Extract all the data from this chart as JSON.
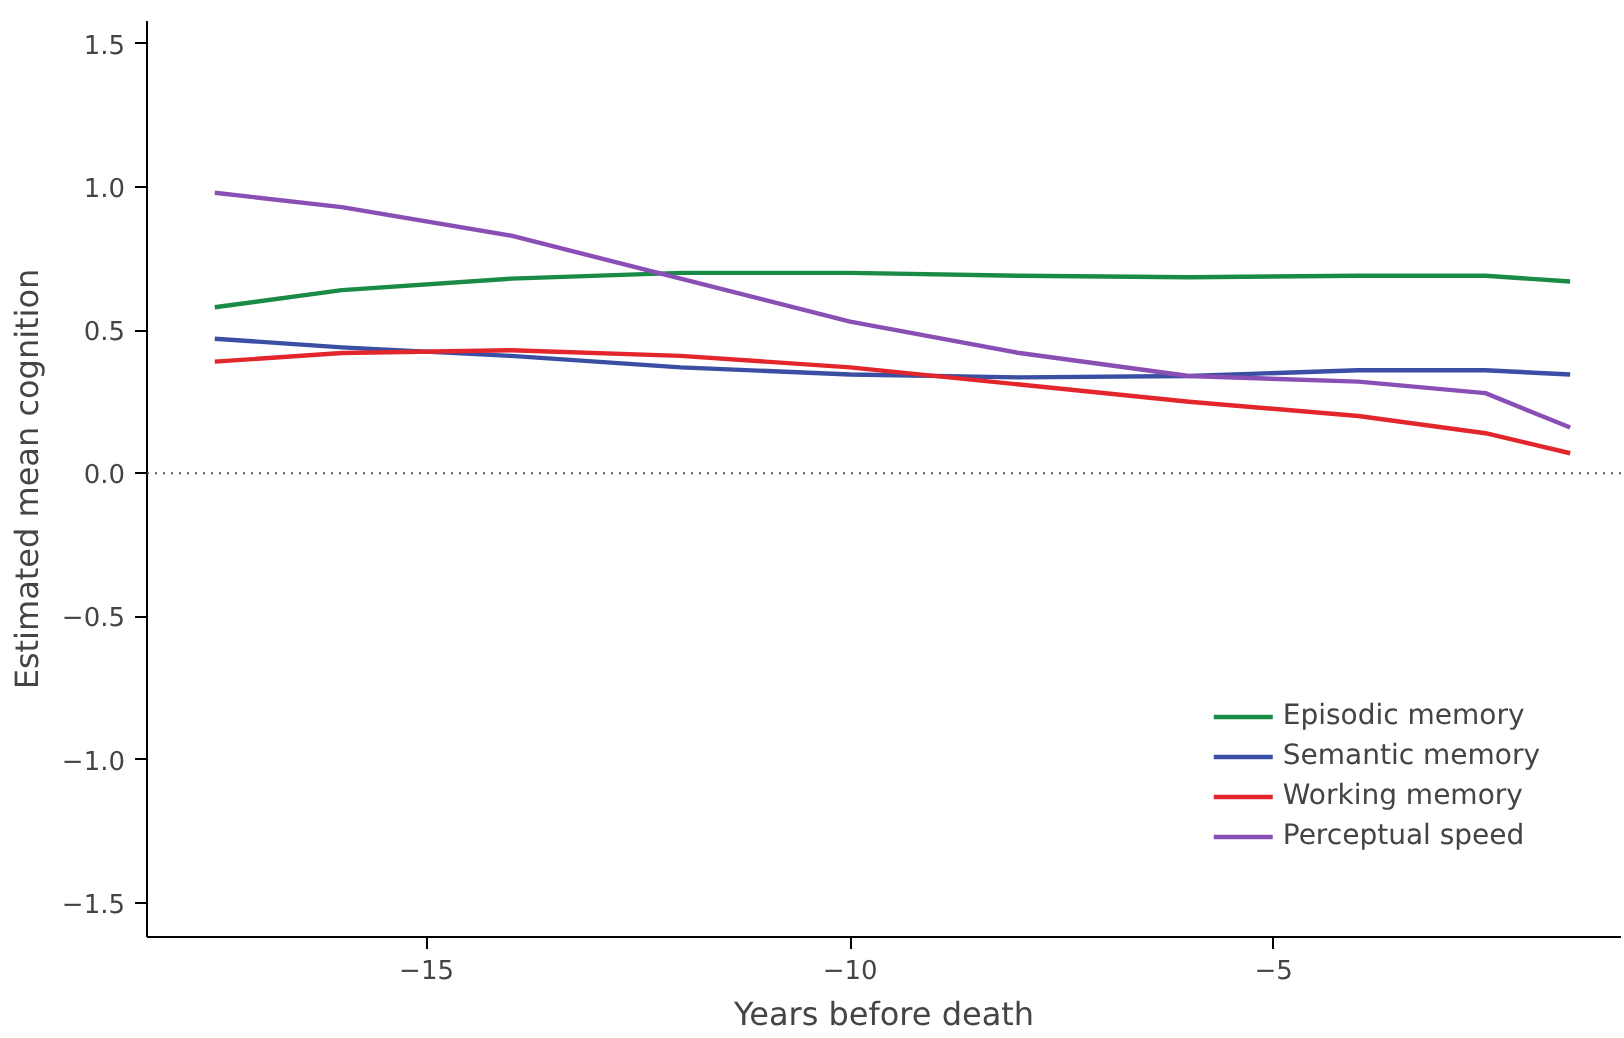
{
  "chart_data": {
    "type": "line",
    "xlabel": "Years before death",
    "ylabel": "Estimated mean cognition",
    "x": [
      -17.5,
      -16,
      -14,
      -12,
      -10,
      -8,
      -6,
      -4,
      -2.5,
      -1.5
    ],
    "series": [
      {
        "name": "Episodic memory",
        "color": "#1a8a47",
        "values": [
          0.58,
          0.64,
          0.68,
          0.7,
          0.7,
          0.69,
          0.685,
          0.69,
          0.69,
          0.67
        ]
      },
      {
        "name": "Semantic memory",
        "color": "#3a4fa3",
        "values": [
          0.47,
          0.44,
          0.41,
          0.37,
          0.345,
          0.335,
          0.34,
          0.36,
          0.36,
          0.345
        ]
      },
      {
        "name": "Working memory",
        "color": "#e3262b",
        "values": [
          0.39,
          0.42,
          0.43,
          0.41,
          0.37,
          0.31,
          0.25,
          0.2,
          0.14,
          0.07
        ]
      },
      {
        "name": "Perceptual speed",
        "color": "#8a4fb5",
        "values": [
          0.98,
          0.93,
          0.83,
          0.68,
          0.53,
          0.42,
          0.34,
          0.32,
          0.28,
          0.16
        ]
      }
    ],
    "xlim": [
      -18.3,
      -0.9
    ],
    "ylim": [
      -1.62,
      1.58
    ],
    "xticks": [
      {
        "value": -15,
        "label": "−15"
      },
      {
        "value": -10,
        "label": "−10"
      },
      {
        "value": -5,
        "label": "−5"
      }
    ],
    "yticks": [
      {
        "value": -1.5,
        "label": "−1.5"
      },
      {
        "value": -1.0,
        "label": "−1.0"
      },
      {
        "value": -0.5,
        "label": "−0.5"
      },
      {
        "value": 0,
        "label": "0.0"
      },
      {
        "value": 0.5,
        "label": "0.5"
      },
      {
        "value": 1.0,
        "label": "1.0"
      },
      {
        "value": 1.5,
        "label": "1.5"
      }
    ],
    "ref_lines": [
      {
        "axis": "y",
        "value": 0,
        "line_style": "dotted",
        "color": "#555555"
      }
    ],
    "legend": "bottom right",
    "grid": false,
    "line_style": "solid",
    "marker": "none"
  }
}
